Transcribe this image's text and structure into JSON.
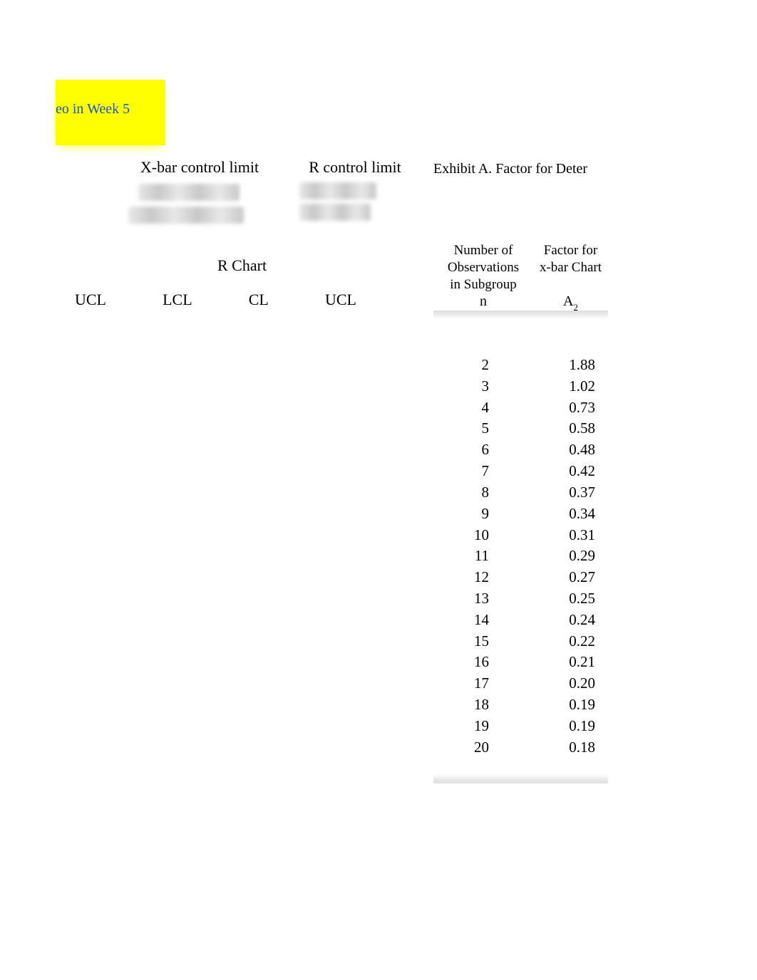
{
  "highlight": {
    "text": "eo in Week 5",
    "text_color": "#1155cc",
    "bg_color": "#ffff00"
  },
  "headers": {
    "xbar": "X-bar control limit",
    "r": "R control limit",
    "exhibit": "Exhibit A. Factor for Deter",
    "r_chart": "R Chart"
  },
  "limit_labels": [
    "UCL",
    "LCL",
    "CL",
    "UCL"
  ],
  "factor_table": {
    "header_col1_line1": "Number of",
    "header_col1_line2": "Observations",
    "header_col1_line3": "in Subgroup",
    "header_col2_line1": "Factor for",
    "header_col2_line2": "x-bar Chart",
    "sym_col1": "n",
    "sym_col2_base": "A",
    "sym_col2_sub": "2",
    "rows": [
      {
        "n": "2",
        "a2": "1.88"
      },
      {
        "n": "3",
        "a2": "1.02"
      },
      {
        "n": "4",
        "a2": "0.73"
      },
      {
        "n": "5",
        "a2": "0.58"
      },
      {
        "n": "6",
        "a2": "0.48"
      },
      {
        "n": "7",
        "a2": "0.42"
      },
      {
        "n": "8",
        "a2": "0.37"
      },
      {
        "n": "9",
        "a2": "0.34"
      },
      {
        "n": "10",
        "a2": "0.31"
      },
      {
        "n": "11",
        "a2": "0.29"
      },
      {
        "n": "12",
        "a2": "0.27"
      },
      {
        "n": "13",
        "a2": "0.25"
      },
      {
        "n": "14",
        "a2": "0.24"
      },
      {
        "n": "15",
        "a2": "0.22"
      },
      {
        "n": "16",
        "a2": "0.21"
      },
      {
        "n": "17",
        "a2": "0.20"
      },
      {
        "n": "18",
        "a2": "0.19"
      },
      {
        "n": "19",
        "a2": "0.19"
      },
      {
        "n": "20",
        "a2": "0.18"
      }
    ]
  },
  "style": {
    "page_bg": "#ffffff",
    "text_color": "#000000",
    "font_family": "Times New Roman",
    "title_fontsize": 22,
    "body_fontsize": 21,
    "blur_color": "#d0d0d0",
    "table_shadow_color": "#dcdcdc"
  }
}
